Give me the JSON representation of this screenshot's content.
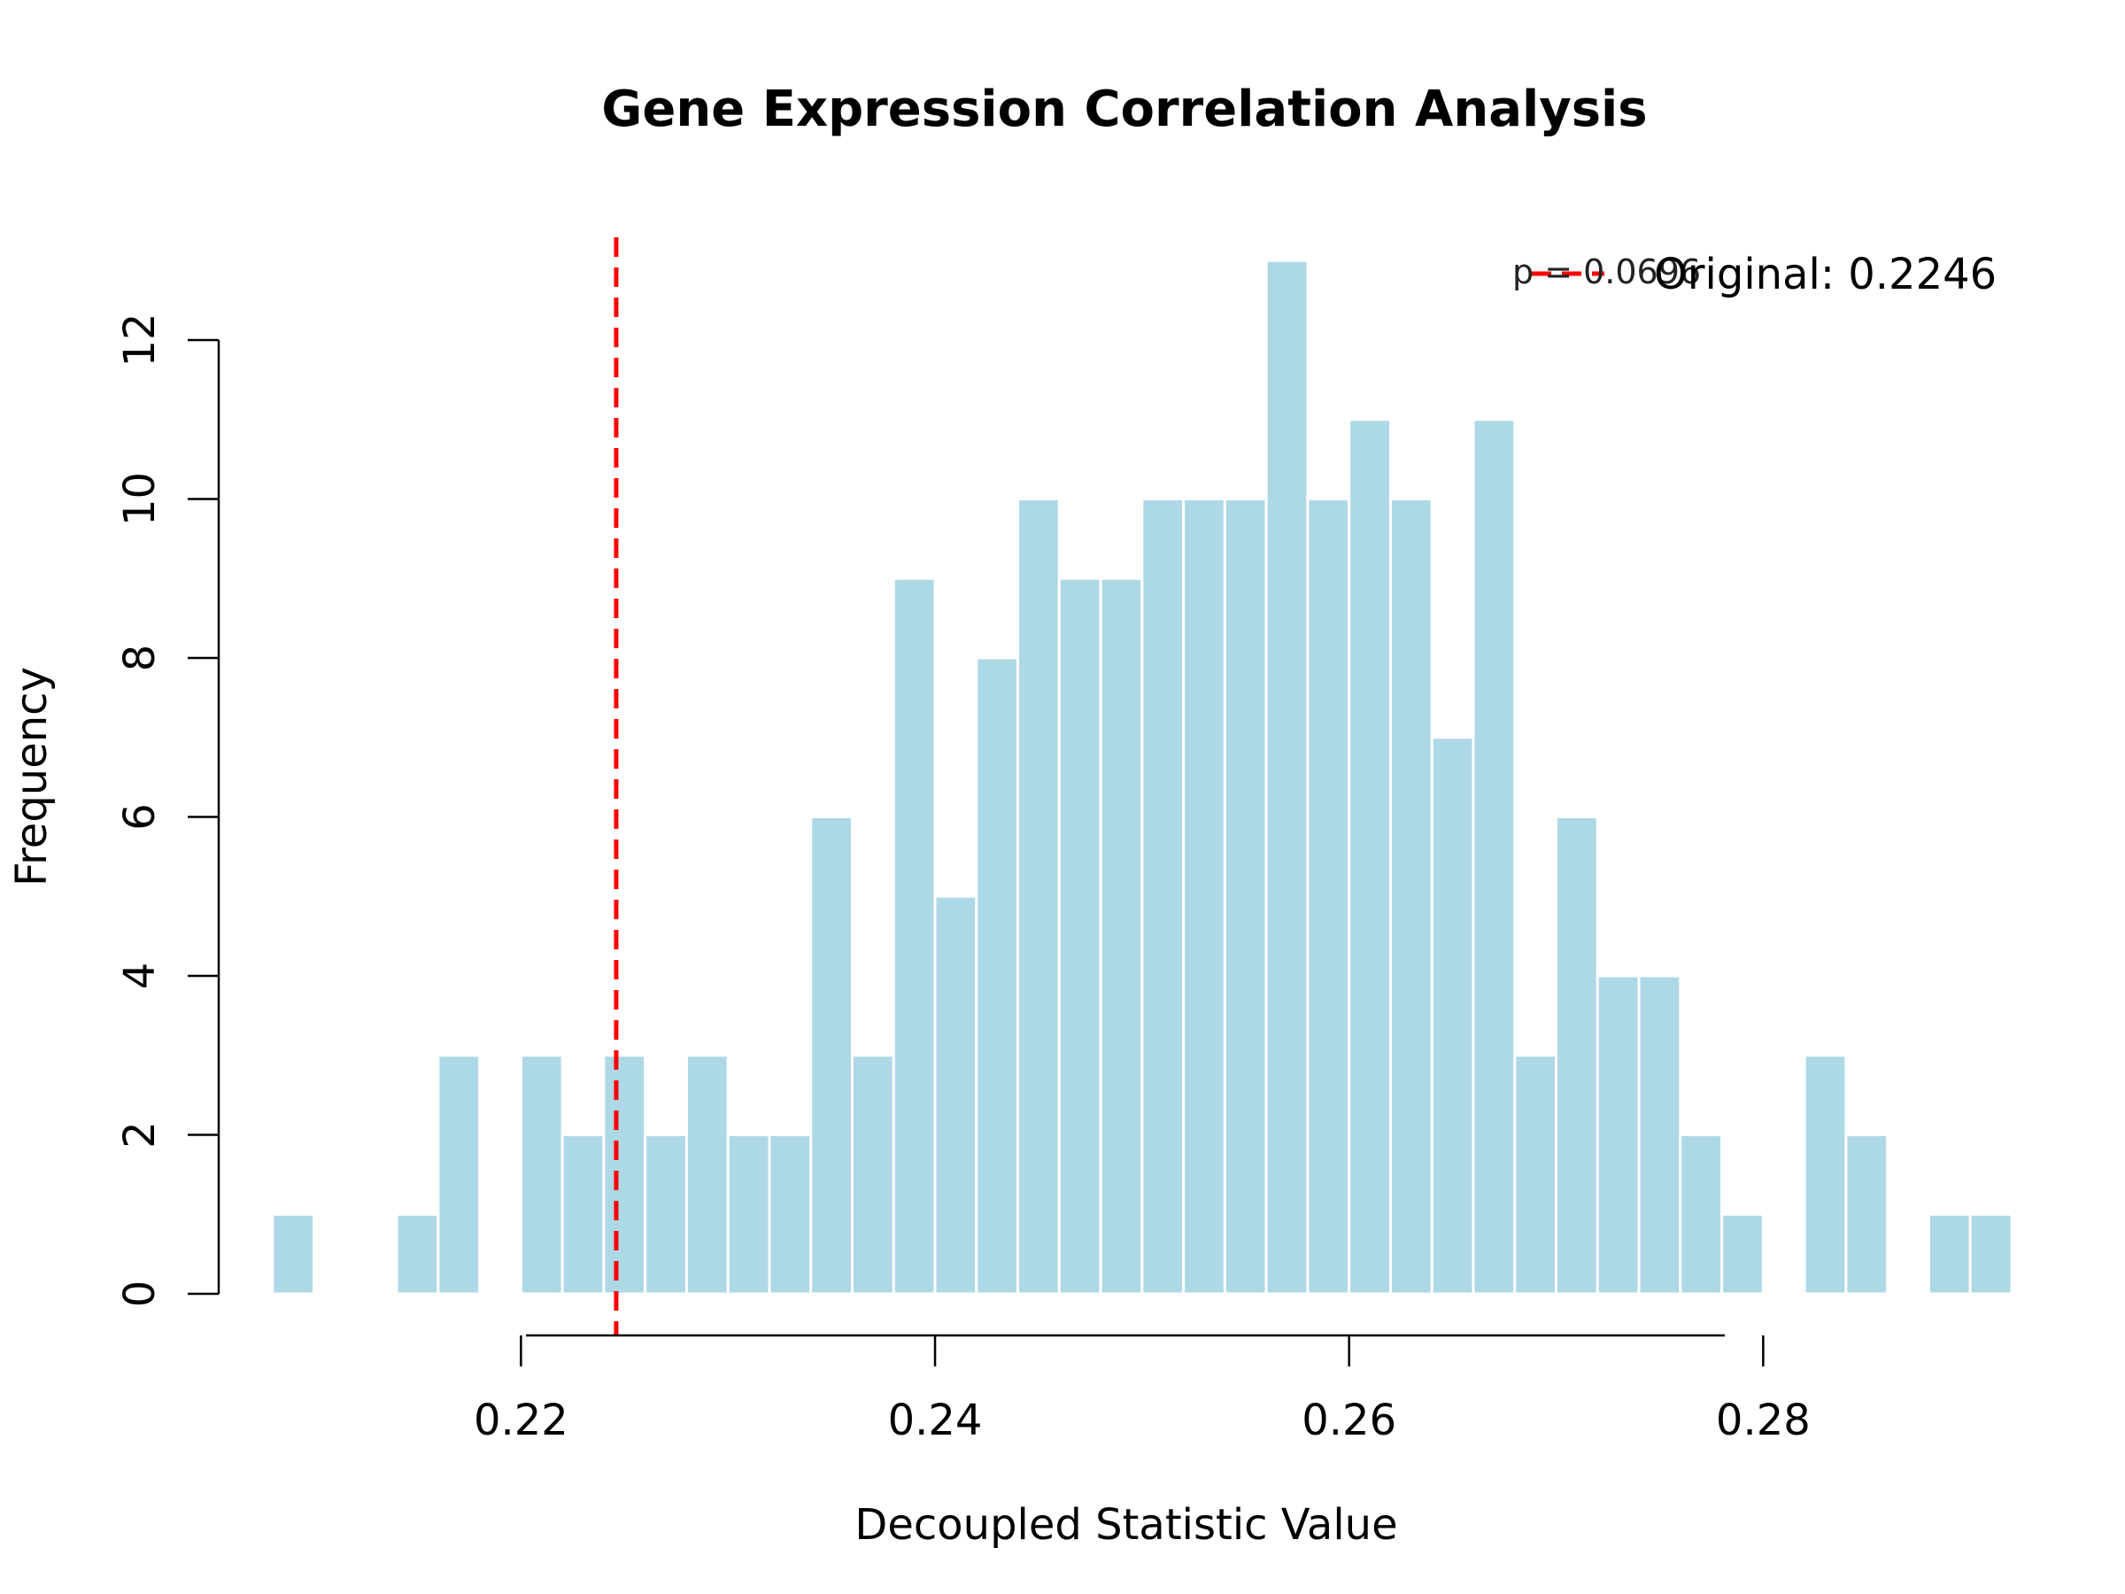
{
  "chart_data": {
    "type": "bar",
    "title": "Gene Expression Correlation Analysis",
    "xlabel": "Decoupled Statistic Value",
    "ylabel": "Frequency",
    "bin_width": 0.002,
    "bin_start": 0.208,
    "values": [
      1,
      0,
      0,
      1,
      3,
      0,
      3,
      2,
      3,
      2,
      3,
      2,
      2,
      6,
      3,
      9,
      5,
      8,
      10,
      9,
      9,
      10,
      10,
      10,
      13,
      10,
      11,
      10,
      7,
      11,
      3,
      6,
      4,
      4,
      2,
      1,
      0,
      3,
      2,
      0,
      1,
      1
    ],
    "xlim": [
      0.2054,
      0.2932
    ],
    "xticks": [
      "0.22",
      "0.24",
      "0.26",
      "0.28"
    ],
    "ylim": [
      0,
      13
    ],
    "yticks": [
      "0",
      "2",
      "4",
      "6",
      "8",
      "10",
      "12"
    ],
    "bar_color": "#add8e6",
    "bar_border": "#ffffff",
    "reference_line": {
      "value": 0.2246,
      "color": "#ff0000",
      "style": "dashed"
    },
    "legend": {
      "label": "Original: 0.2246",
      "color": "#ff0000",
      "position": "top-right"
    },
    "annotation": "p = 0.0696"
  }
}
